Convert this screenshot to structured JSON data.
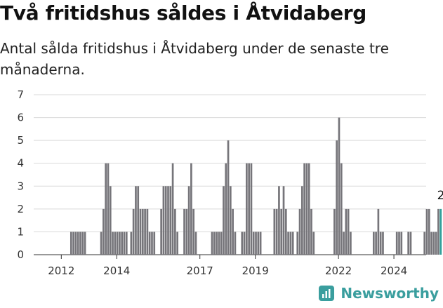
{
  "title": "Två fritidshus såldes i Åtvidaberg",
  "subtitle": "Antal sålda fritidshus i Åtvidaberg under de senaste tre månaderna.",
  "brand": {
    "name": "Newsworthy"
  },
  "colors": {
    "bar": "#76757a",
    "highlight": "#2f9f9a",
    "grid": "#d9d9d9",
    "axis": "#333333",
    "brand": "#3a9e9e"
  },
  "chart_data": {
    "type": "bar",
    "title": "",
    "xlabel": "",
    "ylabel": "",
    "ylim": [
      0,
      7
    ],
    "yticks": [
      "0",
      "1",
      "2",
      "3",
      "4",
      "5",
      "6",
      "7"
    ],
    "grid": true,
    "x_tick_labels": [
      {
        "label": "2012",
        "year": 2012
      },
      {
        "label": "2014",
        "year": 2014
      },
      {
        "label": "2017",
        "year": 2017
      },
      {
        "label": "2019",
        "year": 2019
      },
      {
        "label": "2022",
        "year": 2022
      },
      {
        "label": "2024",
        "year": 2024
      }
    ],
    "series_start": "2011-05",
    "values": [
      0,
      0,
      0,
      0,
      0,
      0,
      0,
      0,
      0,
      0,
      0,
      0,
      1,
      1,
      1,
      1,
      1,
      1,
      1,
      0,
      0,
      0,
      0,
      0,
      0,
      1,
      2,
      4,
      4,
      3,
      1,
      1,
      1,
      1,
      1,
      1,
      1,
      0,
      1,
      2,
      3,
      3,
      2,
      2,
      2,
      2,
      1,
      1,
      1,
      0,
      0,
      2,
      3,
      3,
      3,
      3,
      4,
      2,
      1,
      0,
      0,
      2,
      2,
      3,
      4,
      2,
      1,
      0,
      0,
      0,
      0,
      0,
      0,
      1,
      1,
      1,
      1,
      1,
      3,
      4,
      5,
      3,
      2,
      1,
      0,
      0,
      1,
      1,
      4,
      4,
      4,
      1,
      1,
      1,
      1,
      0,
      0,
      0,
      0,
      0,
      2,
      2,
      3,
      2,
      3,
      2,
      1,
      1,
      1,
      0,
      1,
      2,
      3,
      4,
      4,
      4,
      2,
      1,
      0,
      0,
      0,
      0,
      0,
      0,
      0,
      0,
      2,
      5,
      6,
      4,
      1,
      2,
      2,
      1,
      0,
      0,
      0,
      0,
      0,
      0,
      0,
      0,
      0,
      1,
      1,
      2,
      1,
      1,
      0,
      0,
      0,
      0,
      0,
      1,
      1,
      1,
      0,
      0,
      1,
      1,
      0,
      0,
      0,
      0,
      0,
      1,
      2,
      2,
      1,
      1,
      1,
      2,
      2
    ],
    "highlight_last": true,
    "annotations": [
      {
        "label": "2",
        "index": "last"
      }
    ]
  }
}
